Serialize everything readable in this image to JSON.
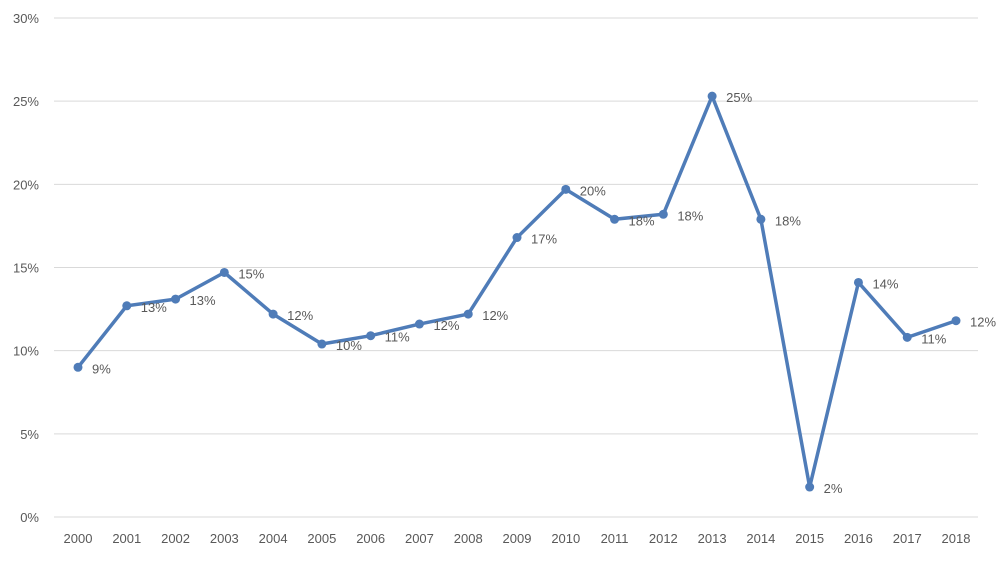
{
  "chart_data": {
    "type": "line",
    "title": "",
    "xlabel": "",
    "ylabel": "",
    "categories": [
      "2000",
      "2001",
      "2002",
      "2003",
      "2004",
      "2005",
      "2006",
      "2007",
      "2008",
      "2009",
      "2010",
      "2011",
      "2012",
      "2013",
      "2014",
      "2015",
      "2016",
      "2017",
      "2018"
    ],
    "series": [
      {
        "name": "Series 1",
        "values": [
          9.0,
          12.7,
          13.1,
          14.7,
          12.2,
          10.4,
          10.9,
          11.6,
          12.2,
          16.8,
          19.7,
          17.9,
          18.2,
          25.3,
          17.9,
          1.8,
          14.1,
          10.8,
          11.8
        ],
        "labels": [
          "9%",
          "13%",
          "13%",
          "15%",
          "12%",
          "10%",
          "11%",
          "12%",
          "12%",
          "17%",
          "20%",
          "18%",
          "18%",
          "25%",
          "18%",
          "2%",
          "14%",
          "11%",
          "12%"
        ],
        "color": "#4f7cb8"
      }
    ],
    "ylim": [
      0,
      30
    ],
    "yticks": [
      0,
      5,
      10,
      15,
      20,
      25,
      30
    ],
    "ytick_labels": [
      "0%",
      "5%",
      "10%",
      "15%",
      "20%",
      "25%",
      "30%"
    ],
    "grid": true,
    "legend": "none"
  },
  "colors": {
    "line": "#4f7cb8",
    "grid": "#d9d9d9",
    "text": "#595959"
  }
}
